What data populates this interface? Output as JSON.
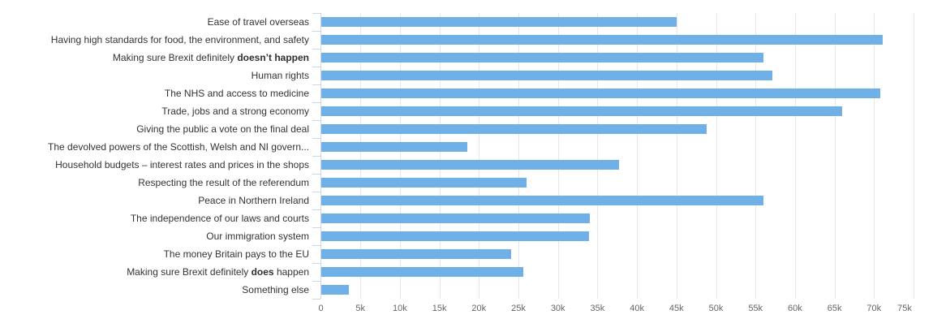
{
  "chart_data": {
    "type": "bar",
    "orientation": "horizontal",
    "title": "",
    "xlabel": "",
    "ylabel": "",
    "xlim": [
      0,
      75000
    ],
    "grid": true,
    "legend_position": "none",
    "bar_color": "#6fb0e9",
    "grid_color": "#e6e6e6",
    "axis_line_color": "#ccd6eb",
    "category_label_color": "#333333",
    "tick_label_color": "#666666",
    "x_tick_labels": [
      "0",
      "5k",
      "10k",
      "15k",
      "20k",
      "25k",
      "30k",
      "35k",
      "40k",
      "45k",
      "50k",
      "55k",
      "60k",
      "65k",
      "70k",
      "75k"
    ],
    "categories": [
      {
        "pre": "Ease of travel overseas",
        "bold": "",
        "post": ""
      },
      {
        "pre": "Having high standards for food, the environment, and safety",
        "bold": "",
        "post": ""
      },
      {
        "pre": "Making sure Brexit definitely ",
        "bold": "doesn’t happen",
        "post": ""
      },
      {
        "pre": "Human rights",
        "bold": "",
        "post": ""
      },
      {
        "pre": "The NHS and access to medicine",
        "bold": "",
        "post": ""
      },
      {
        "pre": "Trade, jobs and a strong economy",
        "bold": "",
        "post": ""
      },
      {
        "pre": "Giving the public a vote on the final deal",
        "bold": "",
        "post": ""
      },
      {
        "pre": "The devolved powers of the Scottish, Welsh and NI govern...",
        "bold": "",
        "post": ""
      },
      {
        "pre": "Household budgets – interest rates and prices in the shops",
        "bold": "",
        "post": ""
      },
      {
        "pre": "Respecting the result of the referendum",
        "bold": "",
        "post": ""
      },
      {
        "pre": "Peace in Northern Ireland",
        "bold": "",
        "post": ""
      },
      {
        "pre": "The independence of our laws and courts",
        "bold": "",
        "post": ""
      },
      {
        "pre": "Our immigration system",
        "bold": "",
        "post": ""
      },
      {
        "pre": "The money Britain pays to the EU",
        "bold": "",
        "post": ""
      },
      {
        "pre": "Making sure Brexit definitely ",
        "bold": "does",
        "post": " happen"
      },
      {
        "pre": "Something else",
        "bold": "",
        "post": ""
      }
    ],
    "values": [
      45000,
      71000,
      56000,
      57100,
      70700,
      65900,
      48800,
      18500,
      37700,
      26000,
      56000,
      34000,
      33900,
      24000,
      25600,
      3500
    ]
  }
}
